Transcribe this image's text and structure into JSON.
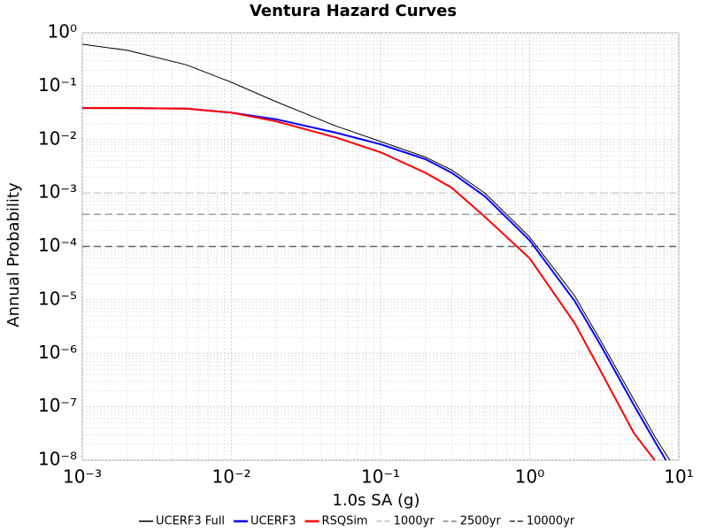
{
  "chart_data": {
    "type": "line",
    "title": "Ventura Hazard Curves",
    "x_label": "1.0s SA (g)",
    "y_label": "Annual Probability",
    "xscale": "log",
    "yscale": "log",
    "grid": true,
    "minor_grid": true,
    "legend": "bottom",
    "xlim": [
      0.001,
      10
    ],
    "ylim": [
      1e-08,
      1
    ],
    "xticks": [
      {
        "value": 0.001,
        "label": "10⁻³"
      },
      {
        "value": 0.01,
        "label": "10⁻²"
      },
      {
        "value": 0.1,
        "label": "10⁻¹"
      },
      {
        "value": 1,
        "label": "10⁰"
      },
      {
        "value": 10,
        "label": "10¹"
      }
    ],
    "yticks": [
      {
        "value": 1,
        "label": "10⁰"
      },
      {
        "value": 0.1,
        "label": "10⁻¹"
      },
      {
        "value": 0.01,
        "label": "10⁻²"
      },
      {
        "value": 0.001,
        "label": "10⁻³"
      },
      {
        "value": 0.0001,
        "label": "10⁻⁴"
      },
      {
        "value": 1e-05,
        "label": "10⁻⁵"
      },
      {
        "value": 1e-06,
        "label": "10⁻⁶"
      },
      {
        "value": 1e-07,
        "label": "10⁻⁷"
      },
      {
        "value": 1e-08,
        "label": "10⁻⁸"
      }
    ],
    "series": [
      {
        "name": "UCERF3 Full",
        "color": "#000000",
        "width": 1,
        "dashed": false,
        "x": [
          0.001,
          0.002,
          0.005,
          0.01,
          0.02,
          0.05,
          0.1,
          0.2,
          0.3,
          0.5,
          1,
          2,
          3,
          5,
          7,
          8.7
        ],
        "values": [
          0.61,
          0.47,
          0.25,
          0.118,
          0.051,
          0.018,
          0.0092,
          0.0047,
          0.0027,
          0.001,
          0.00015,
          1.2e-05,
          1.7e-06,
          1.35e-07,
          2.6e-08,
          1e-08
        ]
      },
      {
        "name": "UCERF3",
        "color": "#0000ff",
        "width": 2,
        "dashed": false,
        "x": [
          0.001,
          0.002,
          0.005,
          0.01,
          0.02,
          0.05,
          0.1,
          0.2,
          0.3,
          0.5,
          1,
          2,
          3,
          5,
          7,
          8.2
        ],
        "values": [
          0.039,
          0.039,
          0.038,
          0.032,
          0.024,
          0.0135,
          0.0082,
          0.0043,
          0.0024,
          0.00087,
          0.00013,
          9.6e-06,
          1.4e-06,
          1.07e-07,
          2.1e-08,
          1e-08
        ]
      },
      {
        "name": "RSQSim",
        "color": "#ff0000",
        "width": 2,
        "dashed": false,
        "x": [
          0.001,
          0.002,
          0.005,
          0.01,
          0.02,
          0.05,
          0.1,
          0.2,
          0.3,
          0.5,
          1,
          2,
          3,
          5,
          6.9
        ],
        "values": [
          0.039,
          0.039,
          0.038,
          0.032,
          0.022,
          0.011,
          0.0058,
          0.0024,
          0.00126,
          0.00036,
          6e-05,
          3.7e-06,
          4.6e-07,
          3.2e-08,
          1e-08
        ]
      },
      {
        "name": "1000yr",
        "color": "#c8c8c8",
        "width": 1.3,
        "dashed": true,
        "x": [
          0.001,
          10
        ],
        "values": [
          0.001,
          0.001
        ]
      },
      {
        "name": "2500yr",
        "color": "#969696",
        "width": 1.3,
        "dashed": true,
        "x": [
          0.001,
          10
        ],
        "values": [
          0.0004,
          0.0004
        ]
      },
      {
        "name": "10000yr",
        "color": "#646464",
        "width": 1.6,
        "dashed": true,
        "x": [
          0.001,
          10
        ],
        "values": [
          0.0001,
          0.0001
        ]
      }
    ]
  }
}
